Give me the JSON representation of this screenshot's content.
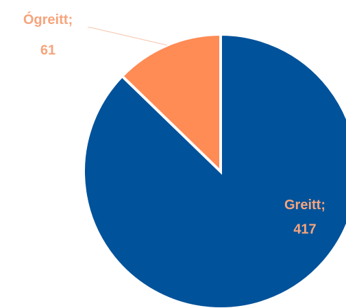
{
  "chart_data": {
    "type": "pie",
    "categories": [
      "Greitt",
      "Ógreitt"
    ],
    "values": [
      417,
      61
    ],
    "colors": [
      "#00529b",
      "#ff8b55"
    ],
    "label_separator": ";"
  }
}
